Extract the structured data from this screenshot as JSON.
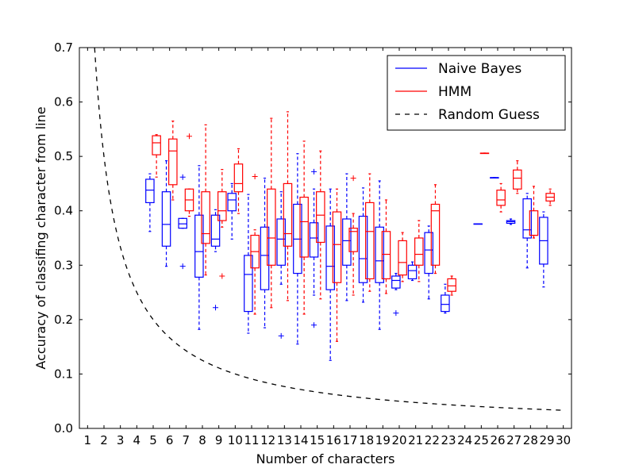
{
  "chart_data": {
    "type": "box",
    "xlabel": "Number of characters",
    "ylabel": "Accuracy of classifing character from line",
    "xlim": [
      0.5,
      30.5
    ],
    "ylim": [
      0,
      0.7
    ],
    "x_ticks": [
      "1",
      "2",
      "3",
      "4",
      "5",
      "6",
      "7",
      "8",
      "9",
      "10",
      "11",
      "12",
      "13",
      "14",
      "15",
      "16",
      "17",
      "18",
      "19",
      "20",
      "21",
      "22",
      "23",
      "24",
      "25",
      "26",
      "27",
      "28",
      "29",
      "30"
    ],
    "y_ticks": [
      "0.0",
      "0.1",
      "0.2",
      "0.3",
      "0.4",
      "0.5",
      "0.6",
      "0.7"
    ],
    "legend": {
      "position": "top-right",
      "entries": [
        {
          "label": "Naive Bayes",
          "color": "#0000ff",
          "style": "solid"
        },
        {
          "label": "HMM",
          "color": "#ff0000",
          "style": "solid"
        },
        {
          "label": "Random Guess",
          "color": "#000000",
          "style": "dashed"
        }
      ]
    },
    "series": [
      {
        "name": "Naive Bayes",
        "color": "#0000ff",
        "offset": -0.2,
        "boxes": [
          {
            "x": 5,
            "wlo": 0.362,
            "q1": 0.415,
            "med": 0.438,
            "q3": 0.458,
            "whi": 0.468,
            "fliers": []
          },
          {
            "x": 6,
            "wlo": 0.298,
            "q1": 0.335,
            "med": 0.375,
            "q3": 0.435,
            "whi": 0.492,
            "fliers": []
          },
          {
            "x": 7,
            "wlo": 0.368,
            "q1": 0.368,
            "med": 0.376,
            "q3": 0.386,
            "whi": 0.386,
            "fliers": [
              0.462,
              0.298
            ]
          },
          {
            "x": 8,
            "wlo": 0.182,
            "q1": 0.278,
            "med": 0.325,
            "q3": 0.392,
            "whi": 0.483,
            "fliers": []
          },
          {
            "x": 9,
            "wlo": 0.325,
            "q1": 0.335,
            "med": 0.348,
            "q3": 0.392,
            "whi": 0.402,
            "fliers": [
              0.222
            ]
          },
          {
            "x": 10,
            "wlo": 0.348,
            "q1": 0.4,
            "med": 0.42,
            "q3": 0.432,
            "whi": 0.45,
            "fliers": []
          },
          {
            "x": 11,
            "wlo": 0.175,
            "q1": 0.215,
            "med": 0.283,
            "q3": 0.318,
            "whi": 0.43,
            "fliers": []
          },
          {
            "x": 12,
            "wlo": 0.185,
            "q1": 0.255,
            "med": 0.318,
            "q3": 0.37,
            "whi": 0.46,
            "fliers": []
          },
          {
            "x": 13,
            "wlo": 0.265,
            "q1": 0.3,
            "med": 0.348,
            "q3": 0.385,
            "whi": 0.435,
            "fliers": [
              0.17
            ]
          },
          {
            "x": 14,
            "wlo": 0.155,
            "q1": 0.285,
            "med": 0.348,
            "q3": 0.412,
            "whi": 0.505,
            "fliers": []
          },
          {
            "x": 15,
            "wlo": 0.245,
            "q1": 0.315,
            "med": 0.35,
            "q3": 0.378,
            "whi": 0.44,
            "fliers": [
              0.472,
              0.19
            ]
          },
          {
            "x": 16,
            "wlo": 0.125,
            "q1": 0.255,
            "med": 0.298,
            "q3": 0.372,
            "whi": 0.44,
            "fliers": []
          },
          {
            "x": 17,
            "wlo": 0.235,
            "q1": 0.3,
            "med": 0.345,
            "q3": 0.385,
            "whi": 0.468,
            "fliers": []
          },
          {
            "x": 18,
            "wlo": 0.232,
            "q1": 0.268,
            "med": 0.312,
            "q3": 0.39,
            "whi": 0.442,
            "fliers": []
          },
          {
            "x": 19,
            "wlo": 0.182,
            "q1": 0.268,
            "med": 0.308,
            "q3": 0.37,
            "whi": 0.455,
            "fliers": []
          },
          {
            "x": 20,
            "wlo": 0.255,
            "q1": 0.258,
            "med": 0.272,
            "q3": 0.28,
            "whi": 0.285,
            "fliers": [
              0.212
            ]
          },
          {
            "x": 21,
            "wlo": 0.272,
            "q1": 0.275,
            "med": 0.29,
            "q3": 0.3,
            "whi": 0.306,
            "fliers": []
          },
          {
            "x": 22,
            "wlo": 0.238,
            "q1": 0.285,
            "med": 0.328,
            "q3": 0.36,
            "whi": 0.372,
            "fliers": []
          },
          {
            "x": 23,
            "wlo": 0.212,
            "q1": 0.215,
            "med": 0.228,
            "q3": 0.245,
            "whi": 0.265,
            "fliers": []
          },
          {
            "x": 25,
            "wlo": 0.376,
            "q1": 0.376,
            "med": 0.376,
            "q3": 0.376,
            "whi": 0.376,
            "fliers": []
          },
          {
            "x": 26,
            "wlo": 0.461,
            "q1": 0.461,
            "med": 0.461,
            "q3": 0.461,
            "whi": 0.461,
            "fliers": []
          },
          {
            "x": 27,
            "wlo": 0.375,
            "q1": 0.377,
            "med": 0.38,
            "q3": 0.382,
            "whi": 0.385,
            "fliers": []
          },
          {
            "x": 28,
            "wlo": 0.295,
            "q1": 0.35,
            "med": 0.365,
            "q3": 0.422,
            "whi": 0.432,
            "fliers": []
          },
          {
            "x": 29,
            "wlo": 0.26,
            "q1": 0.302,
            "med": 0.345,
            "q3": 0.388,
            "whi": 0.398,
            "fliers": []
          }
        ]
      },
      {
        "name": "HMM",
        "color": "#ff0000",
        "offset": 0.2,
        "boxes": [
          {
            "x": 5,
            "wlo": 0.462,
            "q1": 0.503,
            "med": 0.525,
            "q3": 0.538,
            "whi": 0.54,
            "fliers": []
          },
          {
            "x": 6,
            "wlo": 0.42,
            "q1": 0.448,
            "med": 0.51,
            "q3": 0.532,
            "whi": 0.565,
            "fliers": []
          },
          {
            "x": 7,
            "wlo": 0.39,
            "q1": 0.4,
            "med": 0.42,
            "q3": 0.44,
            "whi": 0.44,
            "fliers": [
              0.537
            ]
          },
          {
            "x": 8,
            "wlo": 0.282,
            "q1": 0.34,
            "med": 0.358,
            "q3": 0.435,
            "whi": 0.558,
            "fliers": []
          },
          {
            "x": 9,
            "wlo": 0.37,
            "q1": 0.382,
            "med": 0.4,
            "q3": 0.435,
            "whi": 0.476,
            "fliers": [
              0.28
            ]
          },
          {
            "x": 10,
            "wlo": 0.395,
            "q1": 0.435,
            "med": 0.45,
            "q3": 0.486,
            "whi": 0.514,
            "fliers": []
          },
          {
            "x": 11,
            "wlo": 0.21,
            "q1": 0.295,
            "med": 0.325,
            "q3": 0.355,
            "whi": 0.365,
            "fliers": [
              0.463
            ]
          },
          {
            "x": 12,
            "wlo": 0.222,
            "q1": 0.3,
            "med": 0.35,
            "q3": 0.44,
            "whi": 0.57,
            "fliers": []
          },
          {
            "x": 13,
            "wlo": 0.235,
            "q1": 0.335,
            "med": 0.358,
            "q3": 0.45,
            "whi": 0.582,
            "fliers": []
          },
          {
            "x": 14,
            "wlo": 0.21,
            "q1": 0.315,
            "med": 0.38,
            "q3": 0.425,
            "whi": 0.528,
            "fliers": []
          },
          {
            "x": 15,
            "wlo": 0.238,
            "q1": 0.342,
            "med": 0.392,
            "q3": 0.435,
            "whi": 0.51,
            "fliers": []
          },
          {
            "x": 16,
            "wlo": 0.16,
            "q1": 0.268,
            "med": 0.338,
            "q3": 0.398,
            "whi": 0.44,
            "fliers": []
          },
          {
            "x": 17,
            "wlo": 0.245,
            "q1": 0.325,
            "med": 0.362,
            "q3": 0.368,
            "whi": 0.395,
            "fliers": [
              0.46
            ]
          },
          {
            "x": 18,
            "wlo": 0.252,
            "q1": 0.275,
            "med": 0.362,
            "q3": 0.415,
            "whi": 0.468,
            "fliers": []
          },
          {
            "x": 19,
            "wlo": 0.248,
            "q1": 0.275,
            "med": 0.32,
            "q3": 0.362,
            "whi": 0.42,
            "fliers": []
          },
          {
            "x": 20,
            "wlo": 0.27,
            "q1": 0.282,
            "med": 0.305,
            "q3": 0.345,
            "whi": 0.36,
            "fliers": []
          },
          {
            "x": 21,
            "wlo": 0.27,
            "q1": 0.3,
            "med": 0.32,
            "q3": 0.35,
            "whi": 0.382,
            "fliers": []
          },
          {
            "x": 22,
            "wlo": 0.285,
            "q1": 0.3,
            "med": 0.4,
            "q3": 0.412,
            "whi": 0.448,
            "fliers": []
          },
          {
            "x": 23,
            "wlo": 0.245,
            "q1": 0.252,
            "med": 0.262,
            "q3": 0.275,
            "whi": 0.28,
            "fliers": []
          },
          {
            "x": 25,
            "wlo": 0.506,
            "q1": 0.506,
            "med": 0.506,
            "q3": 0.506,
            "whi": 0.506,
            "fliers": []
          },
          {
            "x": 26,
            "wlo": 0.398,
            "q1": 0.41,
            "med": 0.42,
            "q3": 0.438,
            "whi": 0.45,
            "fliers": []
          },
          {
            "x": 27,
            "wlo": 0.432,
            "q1": 0.44,
            "med": 0.46,
            "q3": 0.475,
            "whi": 0.492,
            "fliers": []
          },
          {
            "x": 28,
            "wlo": 0.35,
            "q1": 0.355,
            "med": 0.355,
            "q3": 0.4,
            "whi": 0.445,
            "fliers": []
          },
          {
            "x": 29,
            "wlo": 0.41,
            "q1": 0.418,
            "med": 0.425,
            "q3": 0.432,
            "whi": 0.44,
            "fliers": []
          }
        ]
      },
      {
        "name": "Random Guess",
        "color": "#000000",
        "type": "line",
        "style": "dashed",
        "formula": "1/x",
        "x_range": [
          1.43,
          30
        ]
      }
    ]
  }
}
